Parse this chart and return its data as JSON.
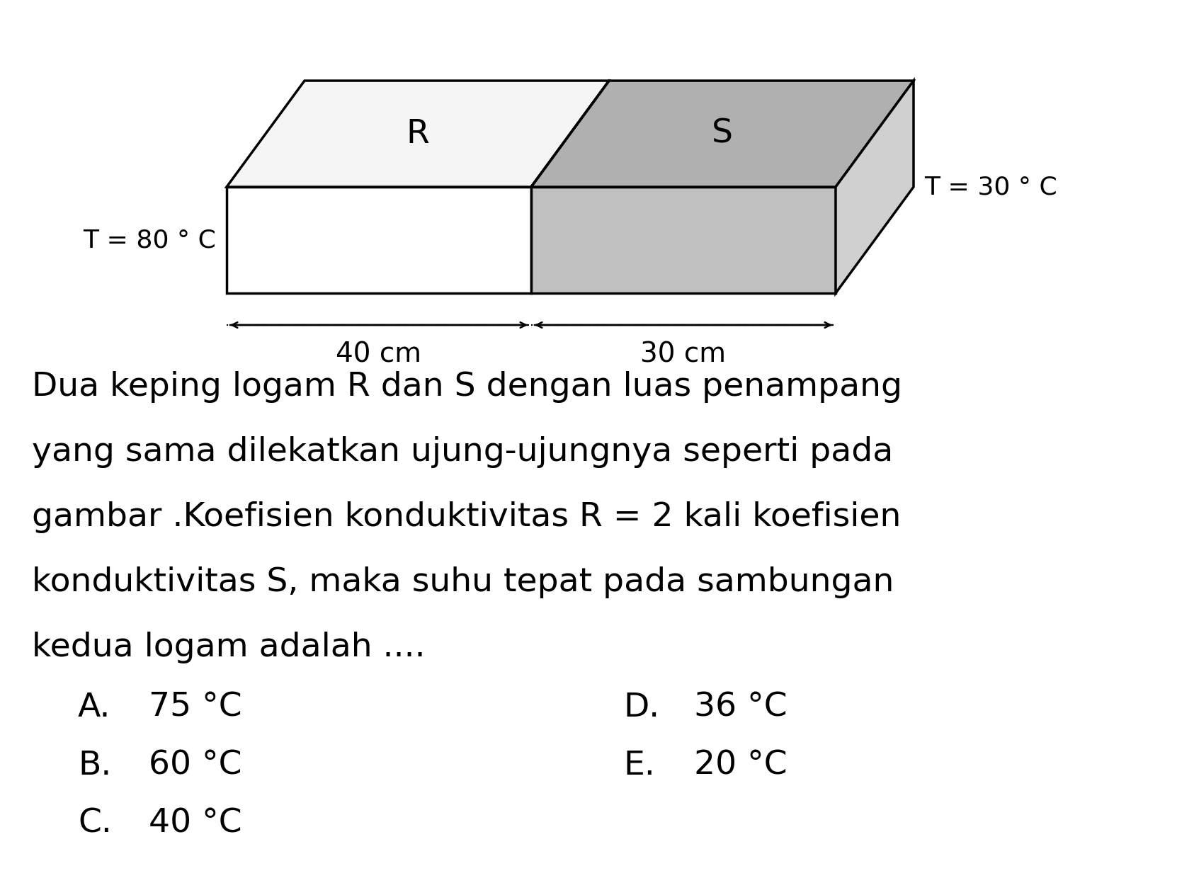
{
  "bg_color": "#ffffff",
  "text_color": "#000000",
  "R_color": "#ffffff",
  "S_color": "#c0c0c0",
  "top_R_color": "#f5f5f5",
  "top_S_color": "#b0b0b0",
  "side_S_color": "#d0d0d0",
  "T_left": "T = 80 ° C",
  "T_right": "T = 30 ° C",
  "label_R": "R",
  "label_S": "S",
  "len_R": "40 cm",
  "len_S": "30 cm",
  "paragraph_lines": [
    "Dua keping logam R dan S dengan luas penampang",
    "yang sama dilekatkan ujung-ujungnya seperti pada",
    "gambar .Koefisien konduktivitas R = 2 kali koefisien",
    "konduktivitas S, maka suhu tepat pada sambungan",
    "kedua logam adalah ...."
  ],
  "choices_left": [
    [
      "A.",
      "75 °C"
    ],
    [
      "B.",
      "60 °C"
    ],
    [
      "C.",
      "40 °C"
    ]
  ],
  "choices_right": [
    [
      "D.",
      "36 °C"
    ],
    [
      "E.",
      "20 °C"
    ]
  ],
  "font_size_text": 34,
  "font_size_label": 34,
  "font_size_temp": 26,
  "font_size_dim": 28,
  "font_size_choice": 34,
  "lw": 2.5
}
